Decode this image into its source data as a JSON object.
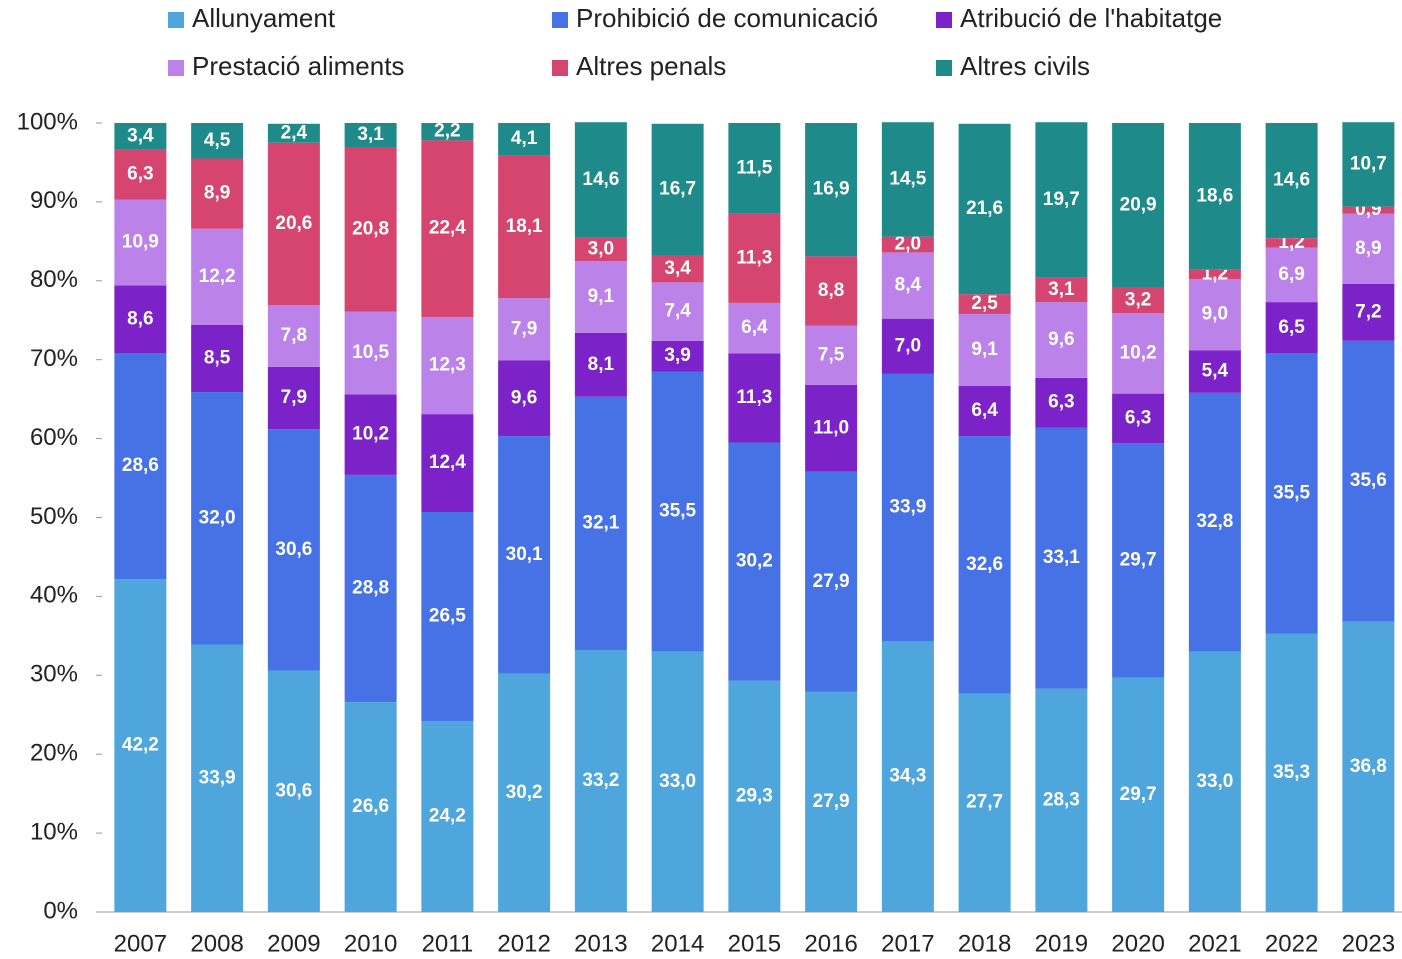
{
  "chart_data": {
    "type": "stacked_bar",
    "categories": [
      "2007",
      "2008",
      "2009",
      "2010",
      "2011",
      "2012",
      "2013",
      "2014",
      "2015",
      "2016",
      "2017",
      "2018",
      "2019",
      "2020",
      "2021",
      "2022",
      "2023"
    ],
    "series": [
      {
        "name": "Allunyament",
        "color": "#4fa6dc",
        "values": [
          42.2,
          33.9,
          30.6,
          26.6,
          24.2,
          30.2,
          33.2,
          33.0,
          29.3,
          27.9,
          34.3,
          27.7,
          28.3,
          29.7,
          33.0,
          35.3,
          36.8
        ],
        "value_labels": [
          "42,2",
          "33,9",
          "30,6",
          "26,6",
          "24,2",
          "30,2",
          "33,2",
          "33,0",
          "29,3",
          "27,9",
          "34,3",
          "27,7",
          "28,3",
          "29,7",
          "33,0",
          "35,3",
          "36,8"
        ]
      },
      {
        "name": "Prohibició de comunicació",
        "color": "#4672e6",
        "values": [
          28.6,
          32.0,
          30.6,
          28.8,
          26.5,
          30.1,
          32.1,
          35.5,
          30.2,
          27.9,
          33.9,
          32.6,
          33.1,
          29.7,
          32.8,
          35.5,
          35.6
        ],
        "value_labels": [
          "28,6",
          "32,0",
          "30,6",
          "28,8",
          "26,5",
          "30,1",
          "32,1",
          "35,5",
          "30,2",
          "27,9",
          "33,9",
          "32,6",
          "33,1",
          "29,7",
          "32,8",
          "35,5",
          "35,6"
        ]
      },
      {
        "name": "Atribució de l'habitatge",
        "color": "#7b22c8",
        "values": [
          8.6,
          8.5,
          7.9,
          10.2,
          12.4,
          9.6,
          8.1,
          3.9,
          11.3,
          11.0,
          7.0,
          6.4,
          6.3,
          6.3,
          5.4,
          6.5,
          7.2
        ],
        "value_labels": [
          "8,6",
          "8,5",
          "7,9",
          "10,2",
          "12,4",
          "9,6",
          "8,1",
          "3,9",
          "11,3",
          "11,0",
          "7,0",
          "6,4",
          "6,3",
          "6,3",
          "5,4",
          "6,5",
          "7,2"
        ]
      },
      {
        "name": "Prestació aliments",
        "color": "#bb82ea",
        "values": [
          10.9,
          12.2,
          7.8,
          10.5,
          12.3,
          7.9,
          9.1,
          7.4,
          6.4,
          7.5,
          8.4,
          9.1,
          9.6,
          10.2,
          9.0,
          6.9,
          8.9
        ],
        "value_labels": [
          "10,9",
          "12,2",
          "7,8",
          "10,5",
          "12,3",
          "7,9",
          "9,1",
          "7,4",
          "6,4",
          "7,5",
          "8,4",
          "9,1",
          "9,6",
          "10,2",
          "9,0",
          "6,9",
          "8,9"
        ]
      },
      {
        "name": "Altres penals",
        "color": "#d6456f",
        "values": [
          6.3,
          8.9,
          20.6,
          20.8,
          22.4,
          18.1,
          3.0,
          3.4,
          11.3,
          8.8,
          2.0,
          2.5,
          3.1,
          3.2,
          1.2,
          1.2,
          0.9
        ],
        "value_labels": [
          "6,3",
          "8,9",
          "20,6",
          "20,8",
          "22,4",
          "18,1",
          "3,0",
          "3,4",
          "11,3",
          "8,8",
          "2,0",
          "2,5",
          "3,1",
          "3,2",
          "1,2",
          "1,2",
          "0,9"
        ]
      },
      {
        "name": "Altres civils",
        "color": "#1f8a8a",
        "values": [
          3.4,
          4.5,
          2.4,
          3.1,
          2.2,
          4.1,
          14.6,
          16.7,
          11.5,
          16.9,
          14.5,
          21.6,
          19.7,
          20.9,
          18.6,
          14.6,
          10.7
        ],
        "value_labels": [
          "3,4",
          "4,5",
          "2,4",
          "3,1",
          "2,2",
          "4,1",
          "14,6",
          "16,7",
          "11,5",
          "16,9",
          "14,5",
          "21,6",
          "19,7",
          "20,9",
          "18,6",
          "14,6",
          "10,7"
        ]
      }
    ],
    "ylim": [
      0,
      100
    ],
    "yticks": [
      {
        "value": 0,
        "label": "0%"
      },
      {
        "value": 10,
        "label": "10%"
      },
      {
        "value": 20,
        "label": "20%"
      },
      {
        "value": 30,
        "label": "30%"
      },
      {
        "value": 40,
        "label": "40%"
      },
      {
        "value": 50,
        "label": "50%"
      },
      {
        "value": 60,
        "label": "60%"
      },
      {
        "value": 70,
        "label": "70%"
      },
      {
        "value": 80,
        "label": "80%"
      },
      {
        "value": 90,
        "label": "90%"
      },
      {
        "value": 100,
        "label": "100%"
      }
    ]
  }
}
